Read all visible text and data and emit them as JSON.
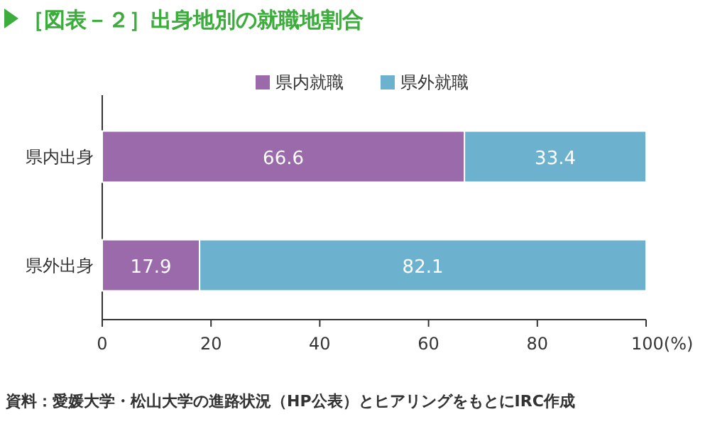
{
  "chart_data": {
    "type": "bar",
    "title": "［図表－２］出身地別の就職地割合",
    "orientation": "horizontal",
    "stacked": true,
    "data_labels": true,
    "legend": "top",
    "categories": [
      "県内出身",
      "県外出身"
    ],
    "series": [
      {
        "name": "県内就職",
        "color": "#9a6aab",
        "values": [
          66.6,
          17.9
        ]
      },
      {
        "name": "県外就職",
        "color": "#6cb2cf",
        "values": [
          33.4,
          82.1
        ]
      }
    ],
    "xlim": [
      0,
      100
    ],
    "xticks": [
      0,
      20,
      40,
      60,
      80,
      {
        "value": 100,
        "label": "100(%)"
      }
    ],
    "annotations": [
      "資料：愛媛大学・松山大学の進路状況（HP公表）とヒアリングをもとにIRC作成"
    ]
  }
}
